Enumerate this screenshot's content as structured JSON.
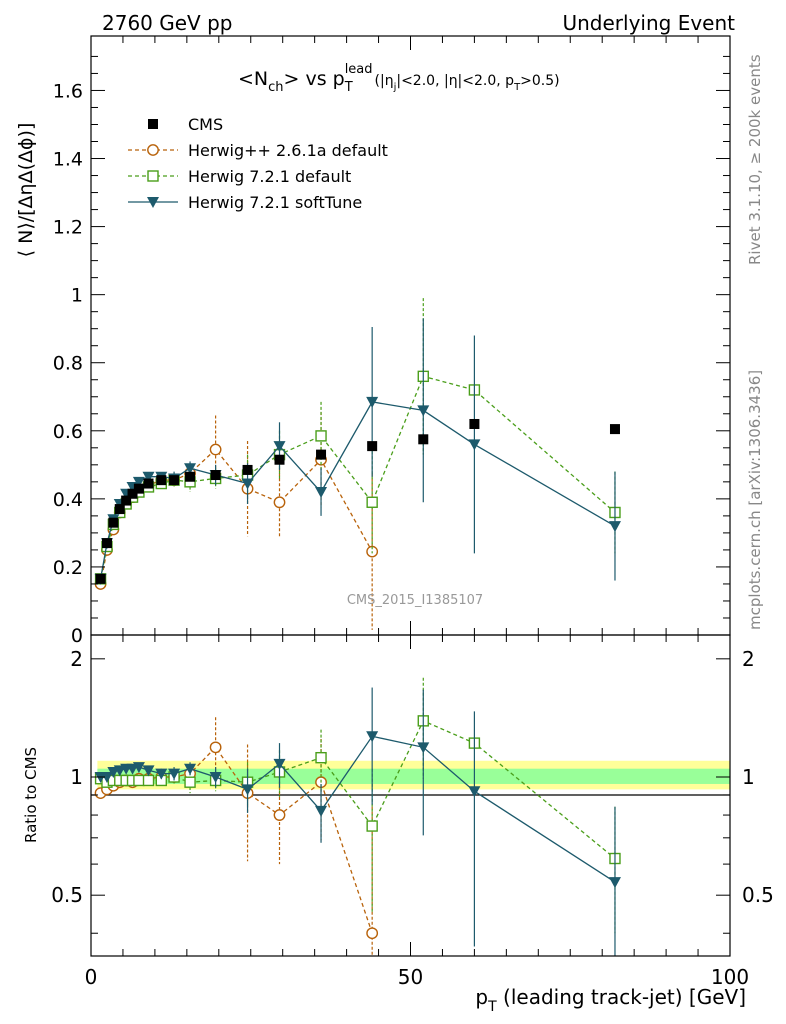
{
  "header": {
    "left": "2760 GeV pp",
    "right": "Underlying Event"
  },
  "side_labels": {
    "rivet": "Rivet 3.1.10, ≥ 200k events",
    "mcplots": "mcplots.cern.ch [arXiv:1306.3436]"
  },
  "watermark": "CMS_2015_I1385107",
  "plot_title": {
    "main": "<N",
    "main_sub": "ch",
    "vs": "> vs p",
    "vs_sub": "T",
    "vs_sup": "lead",
    "cuts_a": "(|η",
    "cuts_a_sub": "j",
    "cuts_b": "|<2.0, |η|<2.0, p",
    "cuts_b_sub": "T",
    "cuts_c": ">0.5)"
  },
  "ylabel_main": "⟨ N⟩/[ΔηΔ(Δϕ)]",
  "ylabel_ratio": "Ratio to CMS",
  "xlabel": "p",
  "xlabel_sub": "T",
  "xlabel_rest": " (leading track-jet) [GeV]",
  "colors": {
    "cms": "#000000",
    "herwig261": "#b8620a",
    "herwig721": "#4a9e1a",
    "softtune": "#1d5a6c",
    "band_outer": "#ffff99",
    "band_inner": "#99ff99"
  },
  "chart_data": [
    {
      "type": "scatter",
      "panel": "main",
      "xlim": [
        0,
        100
      ],
      "ylim": [
        0,
        1.76
      ],
      "yticks": [
        "0",
        "0.2",
        "0.4",
        "0.6",
        "0.8",
        "1",
        "1.2",
        "1.4",
        "1.6"
      ],
      "legend_placement": "top-left",
      "series": [
        {
          "name": "CMS",
          "style": "marker",
          "x": [
            1.5,
            2.5,
            3.5,
            4.5,
            5.5,
            6.5,
            7.5,
            9.0,
            11.0,
            13.0,
            15.5,
            19.5,
            24.5,
            29.5,
            36.0,
            44.0,
            52.0,
            60.0,
            82.0
          ],
          "y": [
            0.165,
            0.27,
            0.33,
            0.37,
            0.395,
            0.415,
            0.43,
            0.445,
            0.455,
            0.455,
            0.465,
            0.47,
            0.485,
            0.515,
            0.53,
            0.555,
            0.575,
            0.62,
            0.605
          ],
          "err": [
            0.005,
            0.005,
            0.005,
            0.005,
            0.005,
            0.005,
            0.005,
            0.005,
            0.005,
            0.005,
            0.005,
            0.005,
            0.005,
            0.005,
            0.005,
            0.005,
            0.005,
            0.005,
            0.005
          ]
        },
        {
          "name": "Herwig++ 2.6.1a default",
          "style": "dashed",
          "x": [
            1.5,
            2.5,
            3.5,
            4.5,
            5.5,
            6.5,
            7.5,
            9.0,
            11.0,
            13.0,
            15.5,
            19.5,
            24.5,
            29.5,
            36.0,
            44.0
          ],
          "y": [
            0.15,
            0.25,
            0.31,
            0.36,
            0.39,
            0.405,
            0.425,
            0.44,
            0.455,
            0.455,
            0.475,
            0.545,
            0.43,
            0.39,
            0.515,
            0.245
          ],
          "err": [
            0.005,
            0.005,
            0.005,
            0.005,
            0.005,
            0.01,
            0.01,
            0.01,
            0.01,
            0.02,
            0.03,
            0.1,
            0.14,
            0.1,
            0.14,
            0.23
          ]
        },
        {
          "name": "Herwig 7.2.1 default",
          "style": "dashed",
          "x": [
            1.5,
            2.5,
            3.5,
            4.5,
            5.5,
            6.5,
            7.5,
            9.0,
            11.0,
            13.0,
            15.5,
            19.5,
            24.5,
            29.5,
            36.0,
            44.0,
            52.0,
            60.0,
            82.0
          ],
          "y": [
            0.165,
            0.26,
            0.325,
            0.36,
            0.385,
            0.405,
            0.42,
            0.435,
            0.445,
            0.455,
            0.45,
            0.46,
            0.47,
            0.53,
            0.585,
            0.39,
            0.76,
            0.72,
            0.36
          ],
          "err": [
            0.005,
            0.005,
            0.005,
            0.005,
            0.005,
            0.01,
            0.01,
            0.01,
            0.01,
            0.02,
            0.03,
            0.03,
            0.06,
            0.07,
            0.1,
            0.15,
            0.23,
            0.0,
            0.12
          ]
        },
        {
          "name": "Herwig 7.2.1 softTune",
          "style": "solid",
          "x": [
            1.5,
            2.5,
            3.5,
            4.5,
            5.5,
            6.5,
            7.5,
            9.0,
            11.0,
            13.0,
            15.5,
            19.5,
            24.5,
            29.5,
            36.0,
            44.0,
            52.0,
            60.0,
            82.0
          ],
          "y": [
            0.165,
            0.27,
            0.34,
            0.385,
            0.415,
            0.435,
            0.45,
            0.465,
            0.465,
            0.46,
            0.49,
            0.47,
            0.445,
            0.555,
            0.42,
            0.685,
            0.66,
            0.56,
            0.32
          ],
          "err": [
            0.005,
            0.005,
            0.005,
            0.005,
            0.005,
            0.01,
            0.01,
            0.01,
            0.01,
            0.02,
            0.02,
            0.03,
            0.06,
            0.07,
            0.07,
            0.22,
            0.27,
            0.32,
            0.16
          ]
        }
      ]
    },
    {
      "type": "scatter",
      "panel": "ratio",
      "xlim": [
        0,
        100
      ],
      "ylim": [
        0.35,
        2.3
      ],
      "xticks": [
        "0",
        "50",
        "100"
      ],
      "yticks": [
        "0.5",
        "1",
        "2"
      ],
      "ylabel": "Ratio to CMS",
      "band": {
        "x": [
          1,
          100
        ],
        "outer": [
          0.93,
          1.1
        ],
        "inner": [
          0.96,
          1.05
        ]
      },
      "series": [
        {
          "name": "Herwig++ 2.6.1a default",
          "style": "dashed",
          "x": [
            1.5,
            2.5,
            3.5,
            4.5,
            5.5,
            6.5,
            7.5,
            9.0,
            11.0,
            13.0,
            15.5,
            19.5,
            24.5,
            29.5,
            36.0,
            44.0
          ],
          "y": [
            0.91,
            0.93,
            0.95,
            0.97,
            0.98,
            0.97,
            0.99,
            0.99,
            1.0,
            1.0,
            1.02,
            1.19,
            0.91,
            0.8,
            0.97,
            0.4
          ],
          "err": [
            0.01,
            0.01,
            0.01,
            0.01,
            0.01,
            0.02,
            0.02,
            0.02,
            0.03,
            0.04,
            0.06,
            0.23,
            0.3,
            0.2,
            0.28,
            0.44
          ]
        },
        {
          "name": "Herwig 7.2.1 default",
          "style": "dashed",
          "x": [
            1.5,
            2.5,
            3.5,
            4.5,
            5.5,
            6.5,
            7.5,
            9.0,
            11.0,
            13.0,
            15.5,
            19.5,
            24.5,
            29.5,
            36.0,
            44.0,
            52.0,
            60.0,
            82.0
          ],
          "y": [
            0.99,
            0.97,
            0.98,
            0.98,
            0.98,
            0.98,
            0.98,
            0.98,
            0.98,
            1.0,
            0.97,
            0.98,
            0.97,
            1.03,
            1.12,
            0.75,
            1.39,
            1.22,
            0.62
          ],
          "err": [
            0.01,
            0.01,
            0.01,
            0.01,
            0.01,
            0.02,
            0.02,
            0.02,
            0.03,
            0.04,
            0.06,
            0.06,
            0.12,
            0.14,
            0.2,
            0.3,
            0.4,
            0.0,
            0.22
          ]
        },
        {
          "name": "Herwig 7.2.1 softTune",
          "style": "solid",
          "x": [
            1.5,
            2.5,
            3.5,
            4.5,
            5.5,
            6.5,
            7.5,
            9.0,
            11.0,
            13.0,
            15.5,
            19.5,
            24.5,
            29.5,
            36.0,
            44.0,
            52.0,
            60.0,
            82.0
          ],
          "y": [
            1.0,
            1.0,
            1.03,
            1.04,
            1.05,
            1.05,
            1.06,
            1.04,
            1.02,
            1.02,
            1.05,
            1.0,
            0.93,
            1.08,
            0.82,
            1.27,
            1.19,
            0.92,
            0.54
          ],
          "err": [
            0.01,
            0.01,
            0.01,
            0.01,
            0.01,
            0.02,
            0.02,
            0.02,
            0.03,
            0.04,
            0.04,
            0.06,
            0.12,
            0.14,
            0.14,
            0.42,
            0.48,
            0.55,
            0.3
          ]
        }
      ]
    }
  ]
}
